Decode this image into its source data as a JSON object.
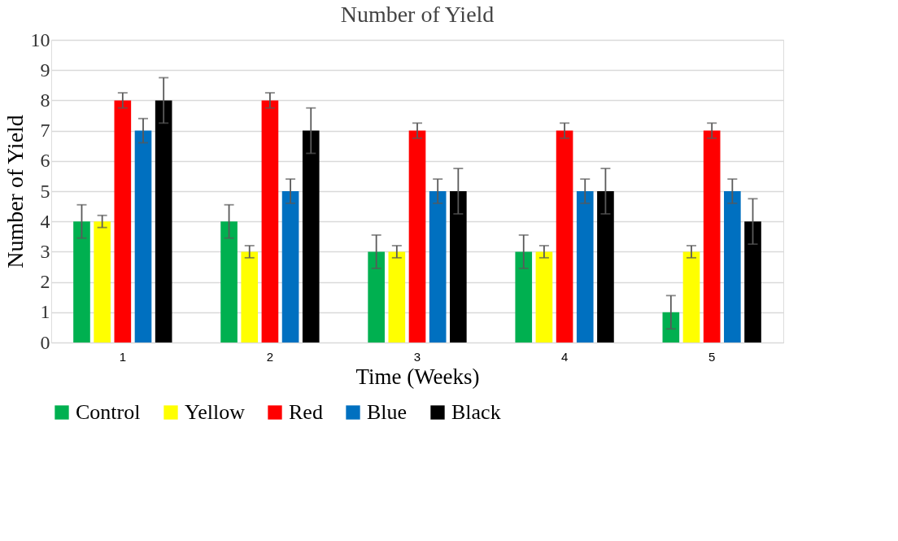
{
  "chart_data": {
    "type": "bar",
    "title": "Number of Yield",
    "xlabel": "Time (Weeks)",
    "ylabel": "Number of Yield",
    "categories": [
      "1",
      "2",
      "3",
      "4",
      "5"
    ],
    "series": [
      {
        "name": "Control",
        "color": "#00b050",
        "values": [
          4,
          4,
          3,
          3,
          1
        ],
        "errors": [
          0.55,
          0.55,
          0.55,
          0.55,
          0.55
        ]
      },
      {
        "name": "Yellow",
        "color": "#ffff00",
        "values": [
          4,
          3,
          3,
          3,
          3
        ],
        "errors": [
          0.2,
          0.2,
          0.2,
          0.2,
          0.2
        ]
      },
      {
        "name": "Red",
        "color": "#ff0000",
        "values": [
          8,
          8,
          7,
          7,
          7
        ],
        "errors": [
          0.25,
          0.25,
          0.25,
          0.25,
          0.25
        ]
      },
      {
        "name": "Blue",
        "color": "#0070c0",
        "values": [
          7,
          5,
          5,
          5,
          5
        ],
        "errors": [
          0.4,
          0.4,
          0.4,
          0.4,
          0.4
        ]
      },
      {
        "name": "Black",
        "color": "#000000",
        "values": [
          8,
          7,
          5,
          5,
          4
        ],
        "errors": [
          0.75,
          0.75,
          0.75,
          0.75,
          0.75
        ]
      }
    ],
    "ylim": [
      0,
      10
    ],
    "yticks": [
      0,
      1,
      2,
      3,
      4,
      5,
      6,
      7,
      8,
      9,
      10
    ],
    "grid": "y",
    "legend": "bottom"
  }
}
